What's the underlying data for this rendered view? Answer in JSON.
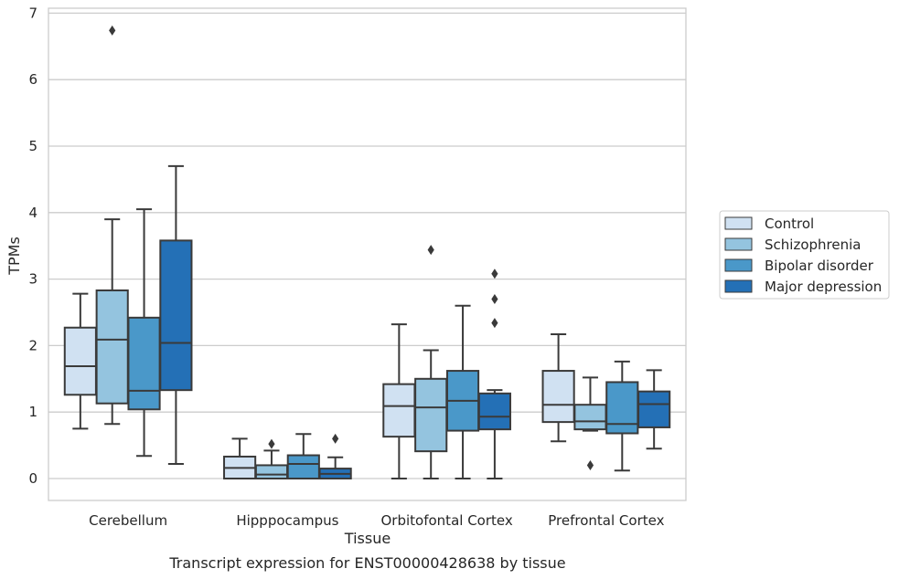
{
  "chart_data": {
    "type": "boxplot",
    "title": "Transcript expression for ENST00000428638 by tissue",
    "xlabel": "Tissue",
    "ylabel": "TPMs",
    "categories": [
      "Cerebellum",
      "Hipppocampus",
      "Orbitofontal Cortex",
      "Prefrontal Cortex"
    ],
    "yticks": [
      0,
      1,
      2,
      3,
      4,
      5,
      6,
      7
    ],
    "ylim": [
      -0.32,
      7.1
    ],
    "grid": true,
    "legend_position": "right",
    "series": [
      {
        "name": "Control",
        "color": "#d0e1f2",
        "boxes": [
          {
            "whisker_low": 0.75,
            "q1": 1.26,
            "median": 1.69,
            "q3": 2.27,
            "whisker_high": 2.78,
            "outliers": []
          },
          {
            "whisker_low": 0.0,
            "q1": 0.0,
            "median": 0.16,
            "q3": 0.33,
            "whisker_high": 0.6,
            "outliers": []
          },
          {
            "whisker_low": 0.0,
            "q1": 0.63,
            "median": 1.09,
            "q3": 1.42,
            "whisker_high": 2.32,
            "outliers": []
          },
          {
            "whisker_low": 0.56,
            "q1": 0.85,
            "median": 1.11,
            "q3": 1.62,
            "whisker_high": 2.17,
            "outliers": []
          }
        ]
      },
      {
        "name": "Schizophrenia",
        "color": "#94c4df",
        "boxes": [
          {
            "whisker_low": 0.82,
            "q1": 1.13,
            "median": 2.09,
            "q3": 2.83,
            "whisker_high": 3.9,
            "outliers": [
              6.74
            ]
          },
          {
            "whisker_low": 0.0,
            "q1": 0.0,
            "median": 0.06,
            "q3": 0.2,
            "whisker_high": 0.42,
            "outliers": [
              0.52
            ]
          },
          {
            "whisker_low": 0.0,
            "q1": 0.41,
            "median": 1.07,
            "q3": 1.5,
            "whisker_high": 1.93,
            "outliers": [
              3.44
            ]
          },
          {
            "whisker_low": 0.72,
            "q1": 0.74,
            "median": 0.86,
            "q3": 1.11,
            "whisker_high": 1.52,
            "outliers": [
              0.2
            ]
          }
        ]
      },
      {
        "name": "Bipolar disorder",
        "color": "#4a98c9",
        "boxes": [
          {
            "whisker_low": 0.34,
            "q1": 1.04,
            "median": 1.32,
            "q3": 2.42,
            "whisker_high": 4.05,
            "outliers": []
          },
          {
            "whisker_low": 0.0,
            "q1": 0.0,
            "median": 0.22,
            "q3": 0.35,
            "whisker_high": 0.67,
            "outliers": []
          },
          {
            "whisker_low": 0.0,
            "q1": 0.72,
            "median": 1.17,
            "q3": 1.62,
            "whisker_high": 2.6,
            "outliers": []
          },
          {
            "whisker_low": 0.12,
            "q1": 0.68,
            "median": 0.82,
            "q3": 1.45,
            "whisker_high": 1.76,
            "outliers": []
          }
        ]
      },
      {
        "name": "Major depression",
        "color": "#2470b6",
        "boxes": [
          {
            "whisker_low": 0.22,
            "q1": 1.33,
            "median": 2.04,
            "q3": 3.58,
            "whisker_high": 4.7,
            "outliers": []
          },
          {
            "whisker_low": 0.0,
            "q1": 0.0,
            "median": 0.07,
            "q3": 0.15,
            "whisker_high": 0.32,
            "outliers": [
              0.6
            ]
          },
          {
            "whisker_low": 0.0,
            "q1": 0.74,
            "median": 0.93,
            "q3": 1.28,
            "whisker_high": 1.33,
            "outliers": [
              2.34,
              2.7,
              3.08
            ]
          },
          {
            "whisker_low": 0.45,
            "q1": 0.77,
            "median": 1.12,
            "q3": 1.31,
            "whisker_high": 1.63,
            "outliers": []
          }
        ]
      }
    ]
  }
}
